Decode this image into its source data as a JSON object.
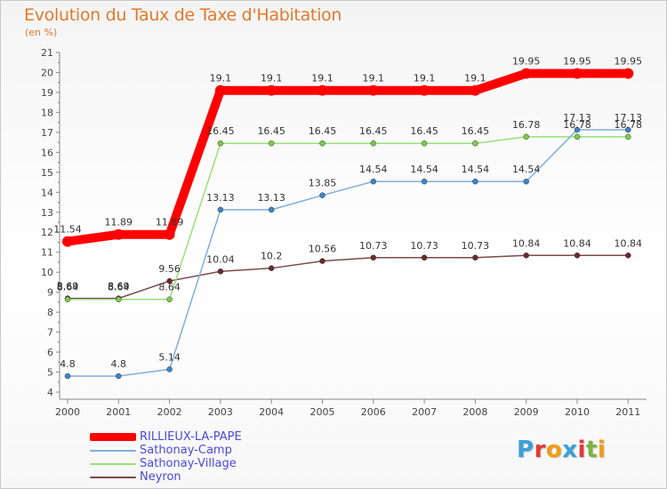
{
  "header": {
    "title": "Evolution du Taux de Taxe d'Habitation",
    "subtitle": "(en %)"
  },
  "logo": {
    "text": "Proxiti",
    "letters": [
      {
        "ch": "P",
        "color": "#3aa0d8"
      },
      {
        "ch": "r",
        "color": "#e53935"
      },
      {
        "ch": "o",
        "color": "#f39c12"
      },
      {
        "ch": "x",
        "color": "#3aa0d8"
      },
      {
        "ch": "i",
        "color": "#e53935"
      },
      {
        "ch": "t",
        "color": "#7cb342"
      },
      {
        "ch": "i",
        "color": "#f39c12"
      }
    ]
  },
  "chart_data": {
    "type": "line",
    "x": [
      "2000",
      "2001",
      "2002",
      "2003",
      "2004",
      "2005",
      "2006",
      "2007",
      "2008",
      "2009",
      "2010",
      "2011"
    ],
    "ylim": [
      4,
      21
    ],
    "yticks": [
      4,
      5,
      6,
      7,
      8,
      9,
      10,
      11,
      12,
      13,
      14,
      15,
      16,
      17,
      18,
      19,
      20,
      21
    ],
    "grid": false,
    "legend_position": "bottom-left",
    "series": [
      {
        "name": "RILLIEUX-LA-PAPE",
        "color": "#ff0000",
        "values": [
          11.54,
          11.89,
          11.89,
          19.1,
          19.1,
          19.1,
          19.1,
          19.1,
          19.1,
          19.95,
          19.95,
          19.95
        ],
        "labels": [
          "11.54",
          "11.89",
          "11.89",
          "19.1",
          "19.1",
          "19.1",
          "19.1",
          "19.1",
          "19.1",
          "19.95",
          "19.95",
          "19.95"
        ]
      },
      {
        "name": "Sathonay-Camp",
        "color": "#80afdc",
        "values": [
          4.8,
          4.8,
          5.14,
          13.13,
          13.13,
          13.85,
          14.54,
          14.54,
          14.54,
          14.54,
          17.13,
          17.13
        ],
        "labels": [
          "4.8",
          "4.8",
          "5.14",
          "13.13",
          "13.13",
          "13.85",
          "14.54",
          "14.54",
          "14.54",
          "14.54",
          "17.13",
          "17.13"
        ]
      },
      {
        "name": "Sathonay-Village",
        "color": "#99e07a",
        "values": [
          8.64,
          8.64,
          8.64,
          16.45,
          16.45,
          16.45,
          16.45,
          16.45,
          16.45,
          16.78,
          16.78,
          16.78
        ],
        "labels": [
          "8.64",
          "8.64",
          "8.64",
          "16.45",
          "16.45",
          "16.45",
          "16.45",
          "16.45",
          "16.45",
          "16.78",
          "16.78",
          "16.78"
        ]
      },
      {
        "name": "Neyron",
        "color": "#7a4a4a",
        "values": [
          8.69,
          8.69,
          9.56,
          10.04,
          10.2,
          10.56,
          10.73,
          10.73,
          10.73,
          10.84,
          10.84,
          10.84
        ],
        "labels": [
          "8.69",
          "8.69",
          "9.56",
          "10.04",
          "10.2",
          "10.56",
          "10.73",
          "10.73",
          "10.73",
          "10.84",
          "10.84",
          "10.84"
        ]
      }
    ]
  }
}
